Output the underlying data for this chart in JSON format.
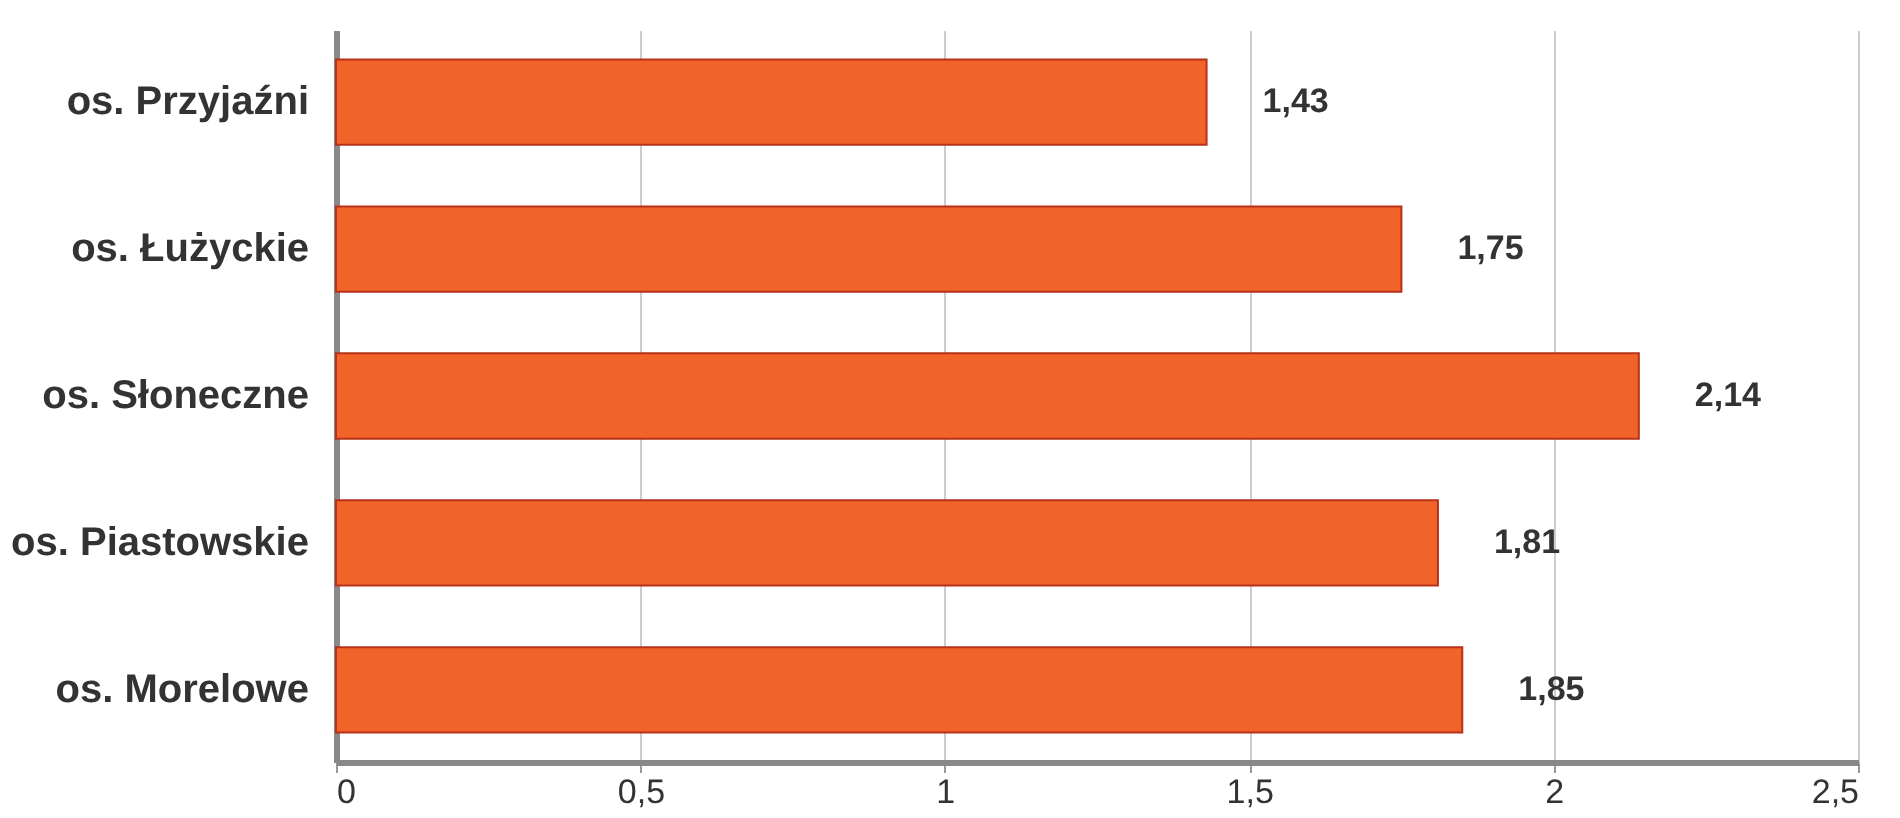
{
  "chart_data": {
    "type": "bar",
    "orientation": "horizontal",
    "categories": [
      "os. Przyjaźni",
      "os. Łużyckie",
      "os. Słoneczne",
      "os. Piastowskie",
      "os. Morelowe"
    ],
    "values": [
      1.43,
      1.75,
      2.14,
      1.81,
      1.85
    ],
    "value_labels": [
      "1,43",
      "1,75",
      "2,14",
      "1,81",
      "1,85"
    ],
    "color": "#f0642a",
    "xlim": [
      0,
      2.5
    ],
    "xticks": [
      0,
      {
        "value": 0.5,
        "label": "0,5"
      },
      1,
      {
        "value": 1.5,
        "label": "1,5"
      },
      2,
      {
        "value": 2.5,
        "label": "2,5"
      }
    ],
    "grid": "x"
  }
}
